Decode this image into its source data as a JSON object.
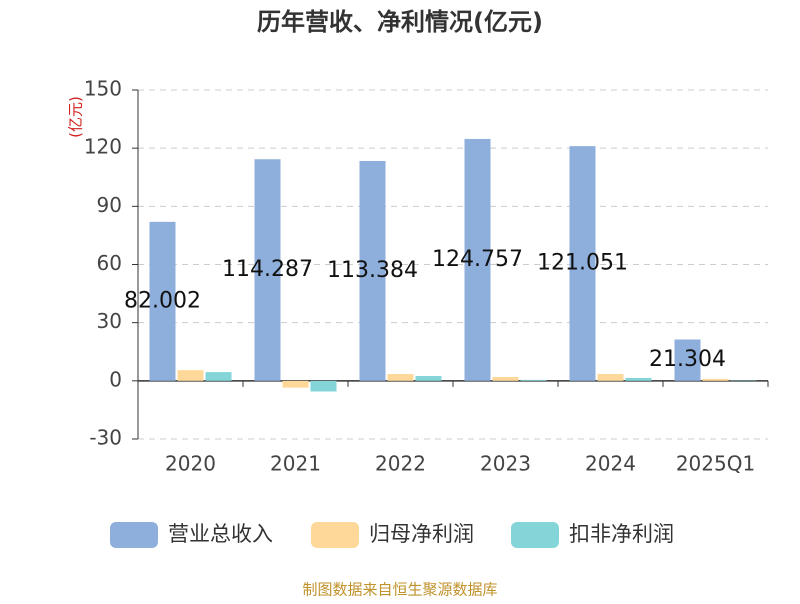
{
  "chart_data": {
    "type": "bar",
    "title": "历年营收、净利情况(亿元)",
    "y_label": "(亿元)",
    "categories": [
      "2020",
      "2021",
      "2022",
      "2023",
      "2024",
      "2025Q1"
    ],
    "series": [
      {
        "name": "营业总收入",
        "color": "#8eaedc",
        "values": [
          82.002,
          114.287,
          113.384,
          124.757,
          121.051,
          21.304
        ],
        "show_labels": true
      },
      {
        "name": "归母净利润",
        "color": "#fdd898",
        "values": [
          5.5,
          -3.5,
          3.5,
          2.0,
          3.5,
          1.0
        ]
      },
      {
        "name": "扣非净利润",
        "color": "#84d5d8",
        "values": [
          4.5,
          -5.5,
          2.5,
          0.5,
          1.5,
          0.2
        ]
      }
    ],
    "ylim": [
      -30,
      150
    ],
    "yticks": [
      -30,
      0,
      30,
      60,
      90,
      120,
      150
    ],
    "grid": true,
    "source": "制图数据来自恒生聚源数据库"
  }
}
